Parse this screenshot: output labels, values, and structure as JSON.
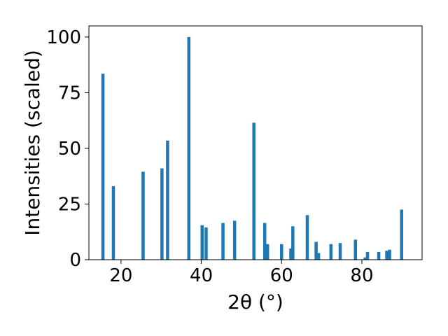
{
  "chart_data": {
    "type": "bar",
    "xlabel": "2θ (°)",
    "ylabel": "Intensities (scaled)",
    "xlim": [
      12,
      95
    ],
    "ylim": [
      0,
      105
    ],
    "x_ticks": [
      "20",
      "40",
      "60",
      "80"
    ],
    "y_ticks": [
      "0",
      "25",
      "50",
      "75",
      "100"
    ],
    "bar_color": "#1f77b4",
    "grid": false,
    "x": [
      15.5,
      18.1,
      25.5,
      30.2,
      31.6,
      36.9,
      40.2,
      41.2,
      45.4,
      48.3,
      53.1,
      55.8,
      56.5,
      60.0,
      62.3,
      62.8,
      66.4,
      68.6,
      69.2,
      72.3,
      74.6,
      78.4,
      80.8,
      81.4,
      84.2,
      86.2,
      86.9,
      89.9
    ],
    "values": [
      83.5,
      33,
      39.5,
      41,
      53.5,
      100,
      15.5,
      14.5,
      16.5,
      17.5,
      61.5,
      16.5,
      7,
      7,
      5,
      15,
      20,
      8,
      3,
      7,
      7.5,
      9,
      1,
      3.5,
      3.5,
      4,
      4.5,
      22.5
    ]
  }
}
